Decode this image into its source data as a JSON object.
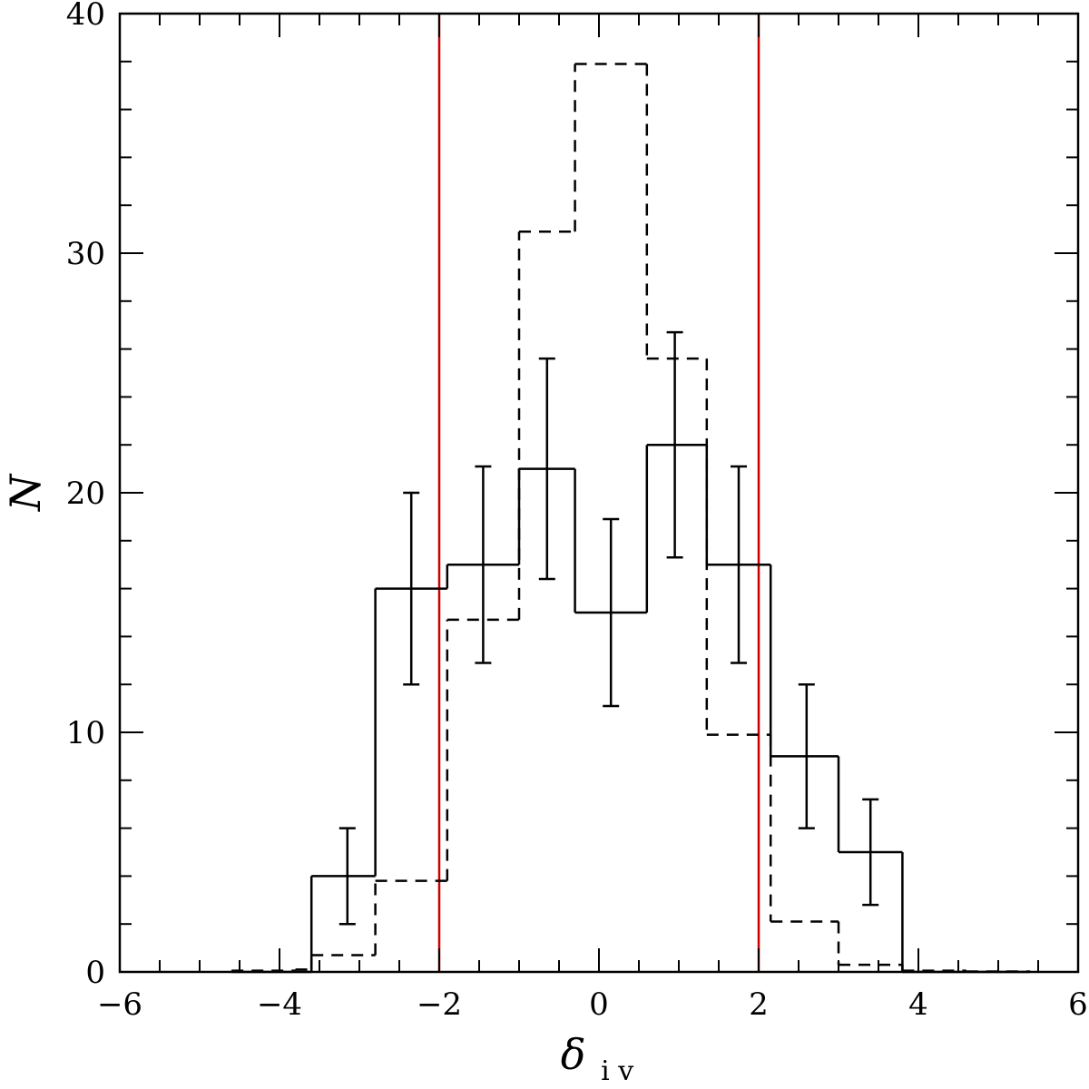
{
  "chart_data": {
    "type": "histogram",
    "title": "",
    "xlabel": "δ",
    "xlabel_subscript": "i v",
    "ylabel": "N",
    "xlim": [
      -6,
      6
    ],
    "ylim": [
      0,
      40
    ],
    "x_ticks": [
      "−6",
      "−4",
      "−2",
      "0",
      "2",
      "4",
      "6"
    ],
    "y_ticks": [
      "0",
      "10",
      "20",
      "30",
      "40"
    ],
    "grid": false,
    "legend": "none",
    "bin_edges": [
      -4.6,
      -3.8,
      -3.6,
      -2.8,
      -1.9,
      -1.0,
      -0.3,
      0.6,
      1.35,
      2.15,
      3.0,
      3.8,
      4.6,
      5.4
    ],
    "series": [
      {
        "style": "solid",
        "color": "#000000",
        "values": [
          0,
          0,
          4,
          16,
          17,
          21,
          15,
          22,
          17,
          9,
          5,
          0,
          0
        ],
        "error_bars": [
          {
            "x": -3.15,
            "low": 2.0,
            "high": 6.0
          },
          {
            "x": -2.35,
            "low": 12.0,
            "high": 20.0
          },
          {
            "x": -1.45,
            "low": 12.9,
            "high": 21.1
          },
          {
            "x": -0.65,
            "low": 16.4,
            "high": 25.6
          },
          {
            "x": 0.15,
            "low": 11.1,
            "high": 18.9
          },
          {
            "x": 0.95,
            "low": 17.3,
            "high": 26.7
          },
          {
            "x": 1.75,
            "low": 12.9,
            "high": 21.1
          },
          {
            "x": 2.6,
            "low": 6.0,
            "high": 12.0
          },
          {
            "x": 3.4,
            "low": 2.8,
            "high": 7.2
          }
        ]
      },
      {
        "style": "dashed",
        "color": "#000000",
        "values": [
          0.05,
          0.1,
          0.7,
          3.8,
          14.7,
          30.9,
          37.9,
          25.6,
          9.9,
          2.1,
          0.3,
          0.05,
          0.02
        ]
      }
    ],
    "vlines": [
      {
        "x": -2,
        "color": "#cc0000"
      },
      {
        "x": 2,
        "color": "#cc0000"
      }
    ]
  }
}
